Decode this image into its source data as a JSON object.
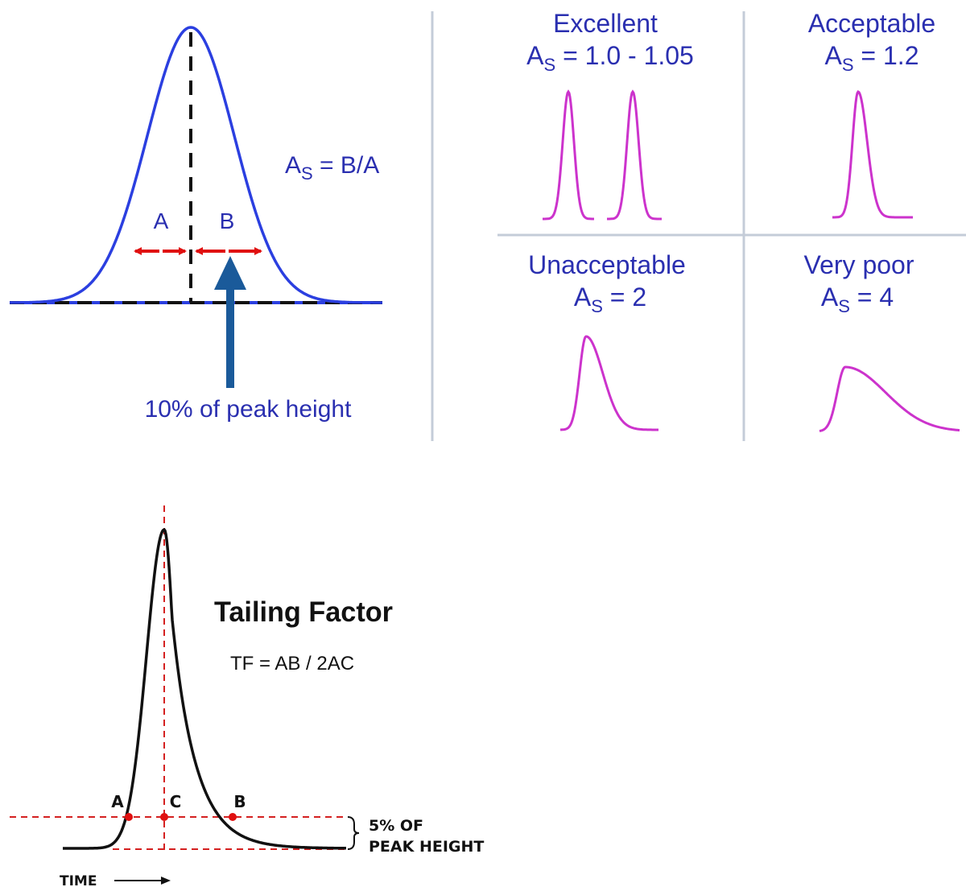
{
  "asymmetry_panel": {
    "label_a": "A",
    "label_b": "B",
    "formula_main": "A",
    "formula_sub": "S",
    "formula_rest": " = B/A",
    "caption": "10% of peak height",
    "colors": {
      "peak": "#2b3fe0",
      "guides": "#111111",
      "width_arrows": "#e01010",
      "pointer_arrow": "#1a5a9a"
    }
  },
  "quality_grid": {
    "colors": {
      "peak": "#cc33cc",
      "divider": "#c4ccd8",
      "text": "#2a2fb0"
    },
    "cells": [
      {
        "title": "Excellent",
        "as_main": "A",
        "as_sub": "S",
        "as_value": " = 1.0 - 1.05"
      },
      {
        "title": "Acceptable",
        "as_main": "A",
        "as_sub": "S",
        "as_value": " = 1.2"
      },
      {
        "title": "Unacceptable",
        "as_main": "A",
        "as_sub": "S",
        "as_value": " = 2"
      },
      {
        "title": "Very poor",
        "as_main": "A",
        "as_sub": "S",
        "as_value": " = 4"
      }
    ]
  },
  "tailing_panel": {
    "title": "Tailing Factor",
    "formula": "TF = AB / 2AC",
    "point_a": "A",
    "point_b": "B",
    "point_c": "C",
    "bracket_line1": "5% OF",
    "bracket_line2": "PEAK HEIGHT",
    "time_label": "TIME",
    "colors": {
      "peak": "#111111",
      "guides": "#d42020",
      "points": "#e01010"
    }
  }
}
